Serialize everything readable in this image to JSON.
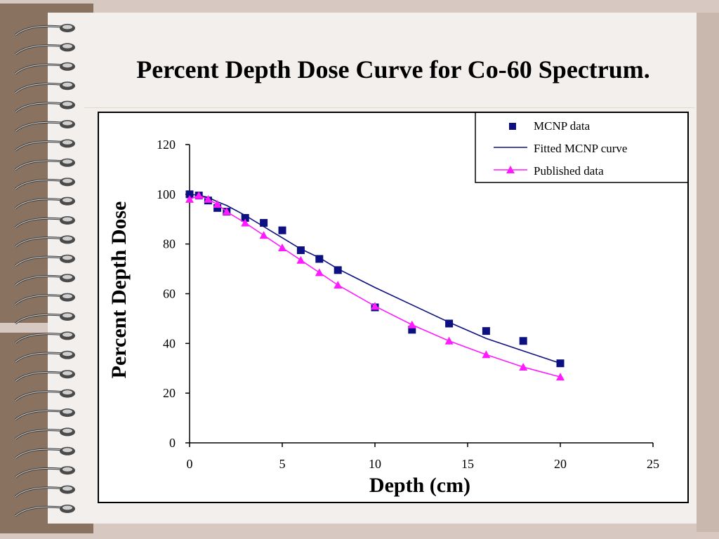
{
  "slide": {
    "title": "Percent Depth Dose Curve for Co-60 Spectrum."
  },
  "colors": {
    "mcnp": "#0c1080",
    "fitted": "#0c1080",
    "published": "#ff1aff",
    "page": "#f2efec",
    "binding": "#8a7260"
  },
  "chart_data": {
    "type": "scatter",
    "title": "",
    "xlabel": "Depth (cm)",
    "ylabel": "Percent Depth Dose",
    "xlim": [
      0,
      25
    ],
    "ylim": [
      0,
      120
    ],
    "xticks": [
      0,
      5,
      10,
      15,
      20,
      25
    ],
    "yticks": [
      0,
      20,
      40,
      60,
      80,
      100,
      120
    ],
    "grid": false,
    "legend_position": "top-right",
    "series": [
      {
        "name": "MCNP data",
        "kind": "markers",
        "marker": "square",
        "color": "#0c1080",
        "x": [
          0,
          0.5,
          1,
          1.5,
          2,
          3,
          4,
          5,
          6,
          7,
          8,
          10,
          12,
          14,
          16,
          18,
          20
        ],
        "y": [
          100,
          99.5,
          97.5,
          94.5,
          93,
          90.5,
          88.5,
          85.5,
          77.5,
          74,
          69.5,
          54.5,
          45.5,
          48,
          45,
          41,
          32
        ]
      },
      {
        "name": "Fitted MCNP curve",
        "kind": "line",
        "color": "#0c1080",
        "x": [
          0,
          0.5,
          1,
          1.5,
          2,
          3,
          4,
          5,
          6,
          7,
          8,
          10,
          12,
          14,
          16,
          18,
          20
        ],
        "y": [
          100,
          99.6,
          98.8,
          97,
          95.5,
          91.5,
          87,
          82.5,
          78,
          74.5,
          70,
          62.5,
          55.5,
          48.5,
          42,
          37,
          32
        ]
      },
      {
        "name": "Published data",
        "kind": "line-markers",
        "marker": "triangle",
        "color": "#ff1aff",
        "x": [
          0,
          0.5,
          1,
          1.5,
          2,
          3,
          4,
          5,
          6,
          7,
          8,
          10,
          12,
          14,
          16,
          18,
          20
        ],
        "y": [
          98,
          99.5,
          98,
          96,
          93,
          88.5,
          83.5,
          78.5,
          73.5,
          68.5,
          63.5,
          55,
          47.5,
          41,
          35.5,
          30.5,
          26.5
        ]
      }
    ]
  }
}
